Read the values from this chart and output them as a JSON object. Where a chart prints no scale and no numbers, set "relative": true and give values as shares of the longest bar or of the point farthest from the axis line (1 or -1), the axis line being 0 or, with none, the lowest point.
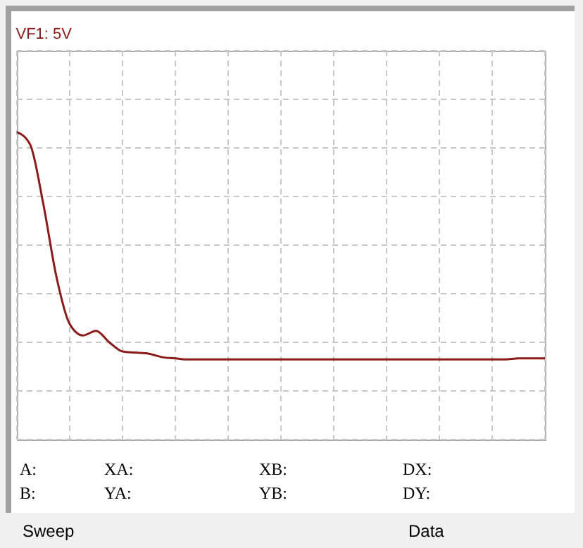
{
  "chart_data": {
    "type": "line",
    "title": "VF1: 5V",
    "relative": true,
    "grid": true,
    "color": "#8b1a1a",
    "categories": [
      null,
      null,
      null,
      null,
      null,
      null,
      null,
      null,
      null,
      null,
      null,
      null,
      null,
      null,
      null,
      null,
      null,
      null,
      null,
      null,
      null,
      null,
      null,
      null,
      null,
      null,
      null,
      null,
      null,
      null,
      null,
      null,
      null,
      null,
      null,
      null,
      null,
      null,
      null,
      null,
      null
    ],
    "values": [
      0.99,
      0.88,
      0.36,
      -0.28,
      -0.69,
      -0.79,
      -0.75,
      -0.85,
      -0.93,
      -0.94,
      -0.95,
      -0.98,
      -0.99,
      -1.0,
      -1.0,
      -1.0,
      -1.0,
      -1.0,
      -1.0,
      -1.0,
      -1.0,
      -1.0,
      -1.0,
      -1.0,
      -1.0,
      -1.0,
      -1.0,
      -1.0,
      -1.0,
      -1.0,
      -1.0,
      -1.0,
      -1.0,
      -1.0,
      -1.0,
      -1.0,
      -1.0,
      -1.0,
      -0.99,
      -0.99,
      -0.99
    ],
    "annotations": [
      "A:",
      "XA:",
      "XB:",
      "DX:",
      "B:",
      "YA:",
      "YB:",
      "DY:",
      "Sweep",
      "Data"
    ]
  }
}
